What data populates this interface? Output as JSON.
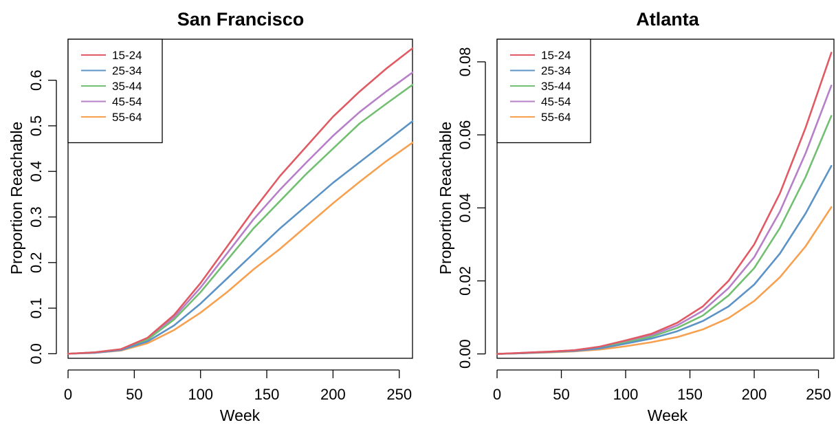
{
  "chart_data": [
    {
      "type": "line",
      "title": "San Francisco",
      "xlabel": "Week",
      "ylabel": "Proportion Reachable",
      "xlim": [
        0,
        260
      ],
      "ylim": [
        -0.01,
        0.69
      ],
      "xticks": [
        0,
        50,
        100,
        150,
        200,
        250
      ],
      "xtick_labels": [
        "0",
        "50",
        "100",
        "150",
        "200",
        "250"
      ],
      "yticks": [
        0,
        0.1,
        0.2,
        0.3,
        0.4,
        0.5,
        0.6
      ],
      "ytick_labels": [
        "0.0",
        "0.1",
        "0.2",
        "0.3",
        "0.4",
        "0.5",
        "0.6"
      ],
      "grid": false,
      "legend_position": "top-left",
      "x": [
        0,
        20,
        40,
        60,
        80,
        100,
        120,
        140,
        160,
        180,
        200,
        220,
        240,
        260
      ],
      "series": [
        {
          "name": "15-24",
          "color": "#e05a63",
          "values": [
            0,
            0.003,
            0.01,
            0.035,
            0.085,
            0.155,
            0.235,
            0.315,
            0.39,
            0.455,
            0.52,
            0.575,
            0.625,
            0.67
          ]
        },
        {
          "name": "25-34",
          "color": "#5b93c7",
          "values": [
            0,
            0.002,
            0.008,
            0.027,
            0.062,
            0.11,
            0.165,
            0.22,
            0.275,
            0.325,
            0.375,
            0.42,
            0.465,
            0.51
          ]
        },
        {
          "name": "35-44",
          "color": "#72bf72",
          "values": [
            0,
            0.003,
            0.009,
            0.031,
            0.075,
            0.135,
            0.205,
            0.275,
            0.335,
            0.395,
            0.45,
            0.505,
            0.548,
            0.59
          ]
        },
        {
          "name": "45-54",
          "color": "#b77fc8",
          "values": [
            0,
            0.003,
            0.01,
            0.033,
            0.08,
            0.145,
            0.22,
            0.295,
            0.36,
            0.42,
            0.478,
            0.53,
            0.575,
            0.617
          ]
        },
        {
          "name": "55-64",
          "color": "#f7a04f",
          "values": [
            0,
            0.002,
            0.007,
            0.023,
            0.052,
            0.09,
            0.135,
            0.185,
            0.23,
            0.28,
            0.33,
            0.377,
            0.422,
            0.463
          ]
        }
      ]
    },
    {
      "type": "line",
      "title": "Atlanta",
      "xlabel": "Week",
      "ylabel": "Proportion Reachable",
      "xlim": [
        0,
        262
      ],
      "ylim": [
        -0.0012,
        0.0862
      ],
      "xticks": [
        0,
        50,
        100,
        150,
        200,
        250
      ],
      "xtick_labels": [
        "0",
        "50",
        "100",
        "150",
        "200",
        "250"
      ],
      "yticks": [
        0,
        0.02,
        0.04,
        0.06,
        0.08
      ],
      "ytick_labels": [
        "0.00",
        "0.02",
        "0.04",
        "0.06",
        "0.08"
      ],
      "grid": false,
      "legend_position": "top-left",
      "x": [
        0,
        20,
        40,
        60,
        80,
        100,
        120,
        140,
        160,
        180,
        200,
        220,
        240,
        260
      ],
      "series": [
        {
          "name": "15-24",
          "color": "#e05a63",
          "values": [
            0,
            0.0003,
            0.0006,
            0.001,
            0.002,
            0.0037,
            0.0055,
            0.0085,
            0.013,
            0.02,
            0.03,
            0.044,
            0.062,
            0.0825
          ]
        },
        {
          "name": "25-34",
          "color": "#5b93c7",
          "values": [
            0,
            0.0002,
            0.0005,
            0.0008,
            0.0015,
            0.0028,
            0.0042,
            0.0062,
            0.009,
            0.013,
            0.019,
            0.0275,
            0.0385,
            0.0515
          ]
        },
        {
          "name": "35-44",
          "color": "#72bf72",
          "values": [
            0,
            0.0002,
            0.0005,
            0.0009,
            0.0017,
            0.0031,
            0.0047,
            0.0071,
            0.0105,
            0.016,
            0.0235,
            0.0345,
            0.0485,
            0.0652
          ]
        },
        {
          "name": "45-54",
          "color": "#b77fc8",
          "values": [
            0,
            0.0003,
            0.0006,
            0.001,
            0.0019,
            0.0034,
            0.0051,
            0.0078,
            0.0118,
            0.018,
            0.0265,
            0.039,
            0.055,
            0.0735
          ]
        },
        {
          "name": "55-64",
          "color": "#f7a04f",
          "values": [
            0,
            0.0002,
            0.0004,
            0.0007,
            0.0012,
            0.0021,
            0.0032,
            0.0046,
            0.0067,
            0.0098,
            0.0145,
            0.021,
            0.0295,
            0.0402
          ]
        }
      ]
    }
  ]
}
